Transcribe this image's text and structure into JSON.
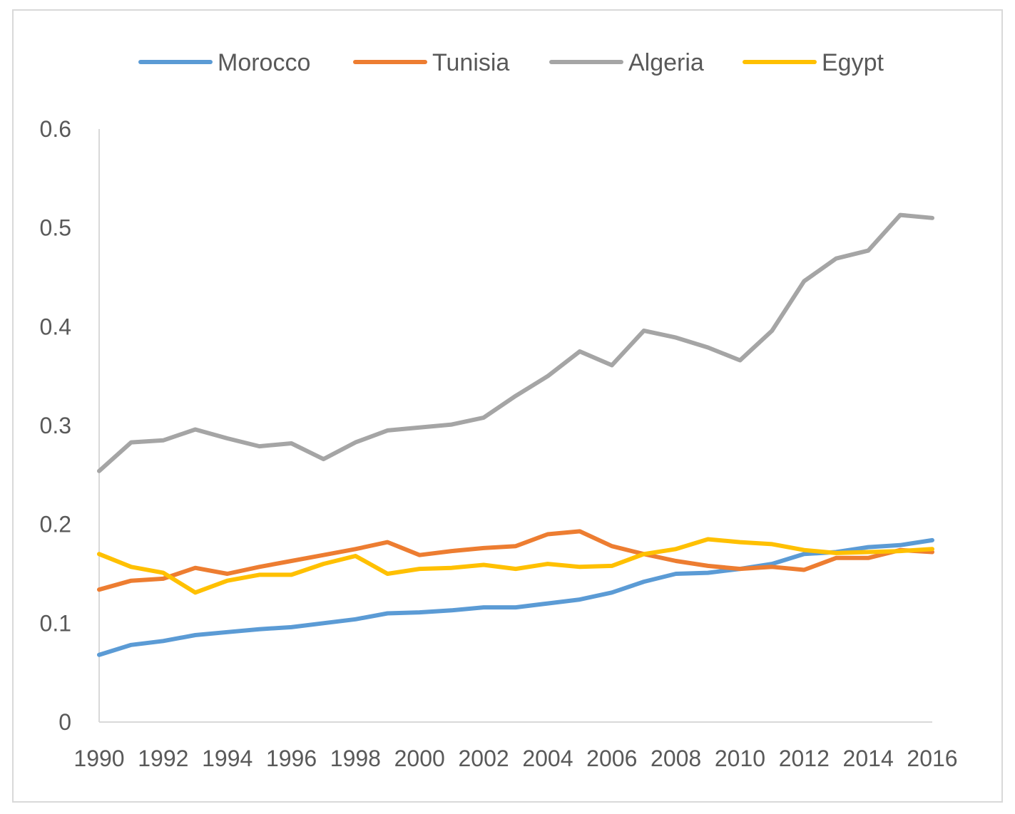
{
  "chart_data": {
    "type": "line",
    "title": "",
    "xlabel": "",
    "ylabel": "",
    "x": [
      1990,
      1991,
      1992,
      1993,
      1994,
      1995,
      1996,
      1997,
      1998,
      1999,
      2000,
      2001,
      2002,
      2003,
      2004,
      2005,
      2006,
      2007,
      2008,
      2009,
      2010,
      2011,
      2012,
      2013,
      2014,
      2015,
      2016
    ],
    "xticks": [
      "1990",
      "1992",
      "1994",
      "1996",
      "1998",
      "2000",
      "2002",
      "2004",
      "2006",
      "2008",
      "2010",
      "2012",
      "2014",
      "2016"
    ],
    "ylim": [
      0,
      0.6
    ],
    "yticks": [
      "0",
      "0.1",
      "0.2",
      "0.3",
      "0.4",
      "0.5",
      "0.6"
    ],
    "grid": false,
    "legend_position": "top",
    "series": [
      {
        "name": "Morocco",
        "color": "#5b9bd5",
        "values": [
          0.068,
          0.078,
          0.082,
          0.088,
          0.091,
          0.094,
          0.096,
          0.1,
          0.104,
          0.11,
          0.111,
          0.113,
          0.116,
          0.116,
          0.12,
          0.124,
          0.131,
          0.142,
          0.15,
          0.151,
          0.155,
          0.16,
          0.17,
          0.172,
          0.177,
          0.179,
          0.184
        ]
      },
      {
        "name": "Tunisia",
        "color": "#ed7d31",
        "values": [
          0.134,
          0.143,
          0.145,
          0.156,
          0.15,
          0.157,
          0.163,
          0.169,
          0.175,
          0.182,
          0.169,
          0.173,
          0.176,
          0.178,
          0.19,
          0.193,
          0.178,
          0.17,
          0.163,
          0.158,
          0.155,
          0.157,
          0.154,
          0.166,
          0.166,
          0.174,
          0.172
        ]
      },
      {
        "name": "Algeria",
        "color": "#a5a5a5",
        "values": [
          0.254,
          0.283,
          0.285,
          0.296,
          0.287,
          0.279,
          0.282,
          0.266,
          0.283,
          0.295,
          0.298,
          0.301,
          0.308,
          0.33,
          0.35,
          0.375,
          0.361,
          0.396,
          0.389,
          0.379,
          0.366,
          0.396,
          0.446,
          0.469,
          0.477,
          0.513,
          0.51
        ]
      },
      {
        "name": "Egypt",
        "color": "#ffc000",
        "values": [
          0.17,
          0.157,
          0.151,
          0.131,
          0.143,
          0.149,
          0.149,
          0.16,
          0.168,
          0.15,
          0.155,
          0.156,
          0.159,
          0.155,
          0.16,
          0.157,
          0.158,
          0.17,
          0.175,
          0.185,
          0.182,
          0.18,
          0.174,
          0.171,
          0.172,
          0.173,
          0.175
        ]
      }
    ]
  }
}
